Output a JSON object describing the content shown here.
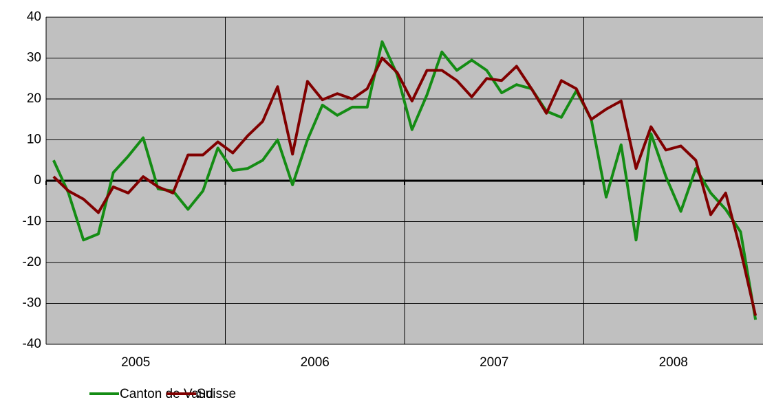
{
  "chart_data": {
    "type": "line",
    "categories": [
      null,
      null,
      null,
      null,
      null,
      null,
      null,
      null,
      null,
      null,
      null,
      null,
      null,
      null,
      null,
      null,
      null,
      null,
      null,
      null,
      null,
      null,
      null,
      null,
      null,
      null,
      null,
      null,
      null,
      null,
      null,
      null,
      null,
      null,
      null,
      null,
      null,
      null,
      null,
      null,
      null,
      null,
      null,
      null,
      null,
      null,
      null,
      null
    ],
    "x_groups": [
      "2005",
      "2006",
      "2007",
      "2008"
    ],
    "series": [
      {
        "name": "Canton de Vaud",
        "color": "#148c14",
        "values": [
          5,
          -3,
          -14.5,
          -13,
          2,
          6,
          10.5,
          -2,
          -2.5,
          -7,
          -2.5,
          8,
          2.5,
          3,
          5,
          10,
          -1,
          10,
          18.5,
          16,
          18,
          18,
          34,
          26,
          12.5,
          21,
          31.5,
          27,
          29.5,
          27,
          21.5,
          23.5,
          22.5,
          17,
          15.5,
          22,
          15,
          -4,
          8.8,
          -14.5,
          11.5,
          1,
          -7.5,
          3,
          -3,
          -7,
          -12.5,
          -34
        ]
      },
      {
        "name": "Suisse",
        "color": "#800000",
        "values": [
          1,
          -2.5,
          -4.5,
          -7.8,
          -1.5,
          -3,
          1,
          -1.5,
          -3,
          6.3,
          6.3,
          9.5,
          6.8,
          11,
          14.5,
          23,
          6.5,
          24.3,
          19.8,
          21.3,
          20,
          22.5,
          30,
          26.5,
          19.5,
          27,
          27,
          24.5,
          20.5,
          25,
          24.5,
          28,
          22.5,
          16.5,
          24.5,
          22.5,
          15,
          17.5,
          19.5,
          3,
          13.2,
          7.5,
          8.5,
          5,
          -8.3,
          -3,
          -17,
          -33
        ]
      }
    ],
    "ylim": [
      -40,
      40
    ],
    "yticks": [
      -40,
      -30,
      -20,
      -10,
      0,
      10,
      20,
      30,
      40
    ],
    "grid": true
  }
}
